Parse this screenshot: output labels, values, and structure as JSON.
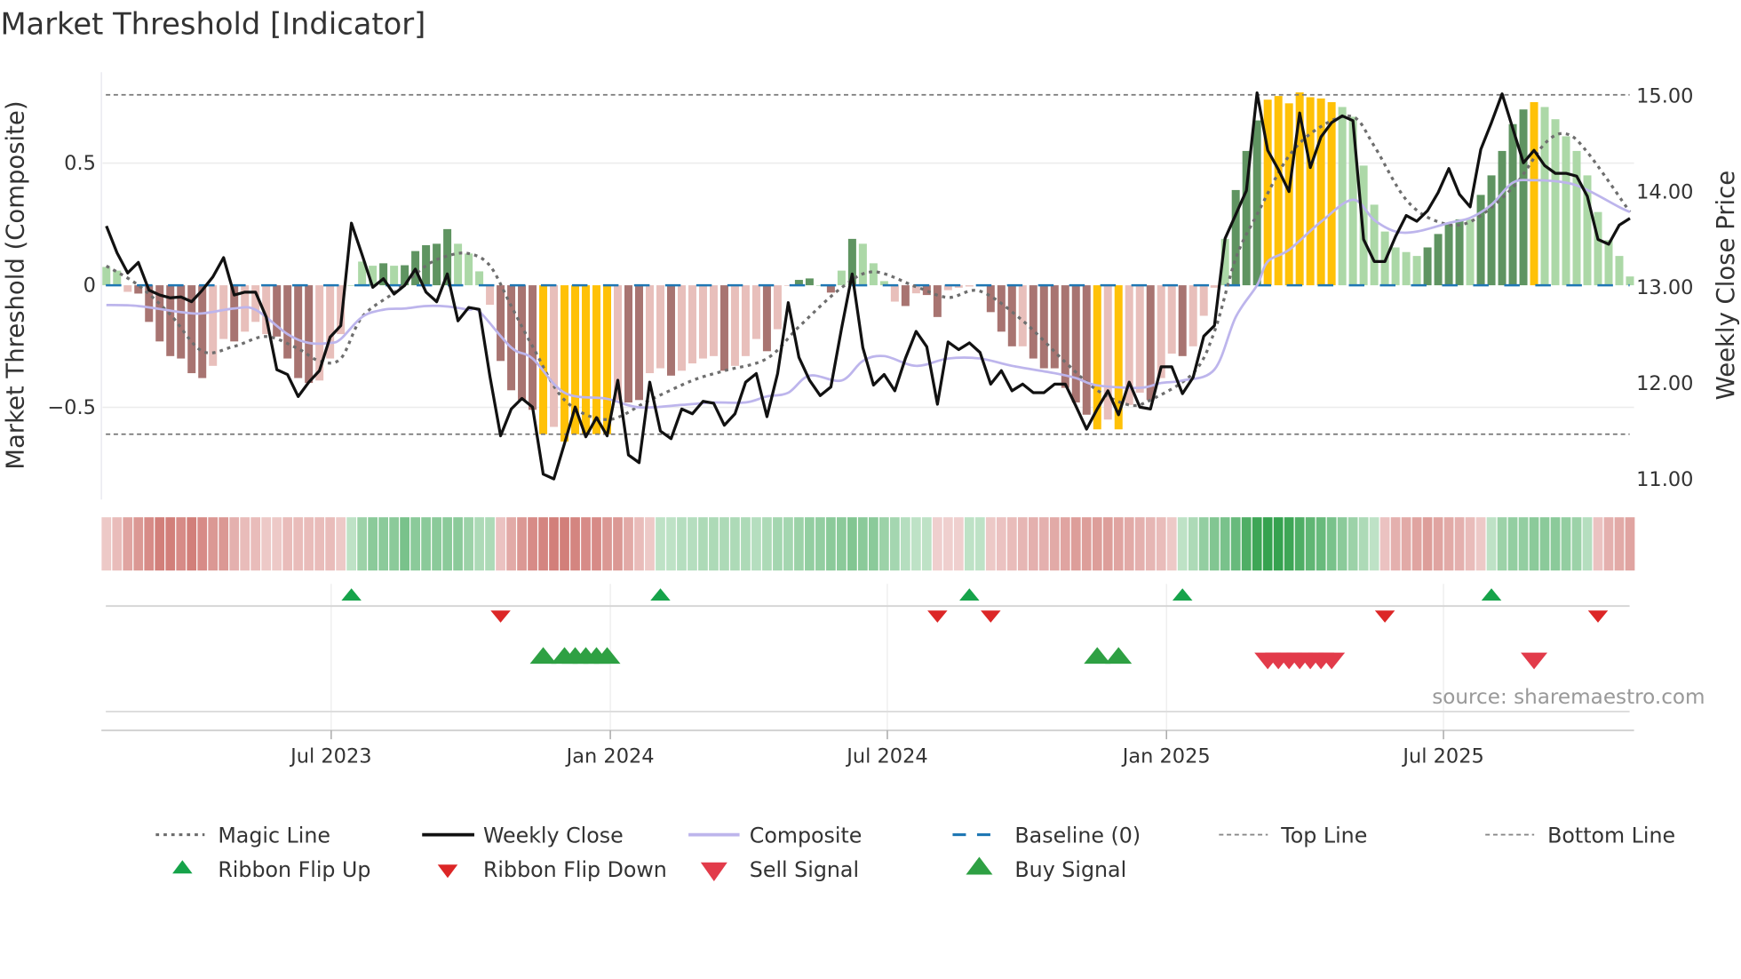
{
  "chart_data": {
    "type": "bar",
    "title": "Market Threshold [Indicator]",
    "ylabel_left": "Market Threshold (Composite)",
    "ylabel_right": "Weekly Close Price",
    "yticks_left": [
      {
        "v": 0.5,
        "label": "0.5"
      },
      {
        "v": 0,
        "label": "0"
      },
      {
        "v": -0.5,
        "label": "−0.5"
      }
    ],
    "yticks_right": [
      {
        "v": 15,
        "label": "15.00"
      },
      {
        "v": 14,
        "label": "14.00"
      },
      {
        "v": 13,
        "label": "13.00"
      },
      {
        "v": 12,
        "label": "12.00"
      },
      {
        "v": 11,
        "label": "11.00"
      }
    ],
    "xticks": [
      {
        "week": 21.1,
        "label": "Jul 2023"
      },
      {
        "week": 47.3,
        "label": "Jan 2024"
      },
      {
        "week": 73.3,
        "label": "Jul 2024"
      },
      {
        "week": 99.5,
        "label": "Jan 2025"
      },
      {
        "week": 125.5,
        "label": "Jul 2025"
      }
    ],
    "top_line": 0.78,
    "bottom_line": -0.61,
    "baseline": 0,
    "source": "source: sharemaestro.com",
    "colors": {
      "dg": "#5f9461",
      "lg": "#acd8a7",
      "dr": "#a87471",
      "lr": "#e8bfbb",
      "y": "#ffc107",
      "magic": "#6e6e6e",
      "close": "#111111",
      "composite": "#bdb5ec",
      "baseline": "#1f77b4",
      "flip_up": "#16a34a",
      "flip_down": "#dc2626",
      "buy": "#2ea043",
      "sell": "#e23b4a"
    },
    "composite_bars": [
      0.075,
      0.06,
      -0.027,
      -0.034,
      -0.15,
      -0.23,
      -0.29,
      -0.3,
      -0.36,
      -0.38,
      -0.33,
      -0.22,
      -0.23,
      -0.19,
      -0.15,
      -0.2,
      -0.21,
      -0.3,
      -0.38,
      -0.4,
      -0.39,
      -0.3,
      -0.2,
      0.0,
      0.097,
      0.08,
      0.09,
      0.08,
      0.082,
      0.14,
      0.164,
      0.17,
      0.23,
      0.17,
      0.13,
      0.057,
      -0.08,
      -0.31,
      -0.43,
      -0.47,
      -0.51,
      -0.61,
      -0.58,
      -0.64,
      -0.61,
      -0.61,
      -0.61,
      -0.61,
      -0.47,
      -0.48,
      -0.47,
      -0.36,
      -0.34,
      -0.37,
      -0.35,
      -0.32,
      -0.3,
      -0.29,
      -0.35,
      -0.33,
      -0.29,
      -0.22,
      -0.27,
      -0.18,
      0.0,
      0.022,
      0.028,
      0.0,
      -0.03,
      0.06,
      0.19,
      0.17,
      0.09,
      0.017,
      -0.067,
      -0.085,
      -0.033,
      -0.04,
      -0.13,
      -0.02,
      -0.01,
      -0.005,
      -0.005,
      -0.11,
      -0.19,
      -0.25,
      -0.25,
      -0.3,
      -0.34,
      -0.34,
      -0.42,
      -0.48,
      -0.53,
      -0.59,
      -0.55,
      -0.59,
      -0.49,
      -0.44,
      -0.47,
      -0.38,
      -0.28,
      -0.29,
      -0.25,
      -0.125,
      -0.01,
      0.19,
      0.39,
      0.55,
      0.675,
      0.76,
      0.775,
      0.745,
      0.79,
      0.77,
      0.765,
      0.75,
      0.73,
      0.69,
      0.49,
      0.33,
      0.22,
      0.155,
      0.136,
      0.12,
      0.155,
      0.21,
      0.25,
      0.27,
      0.27,
      0.37,
      0.45,
      0.55,
      0.66,
      0.72,
      0.75,
      0.73,
      0.68,
      0.61,
      0.55,
      0.45,
      0.3,
      0.185,
      0.12,
      0.036
    ],
    "bar_states": [
      "lg",
      "lg",
      "lr",
      "dr",
      "dr",
      "dr",
      "dr",
      "dr",
      "dr",
      "dr",
      "lr",
      "lr",
      "dr",
      "lr",
      "lr",
      "lr",
      "dr",
      "dr",
      "dr",
      "dr",
      "lr",
      "lr",
      "lr",
      "lg",
      "lg",
      "lg",
      "dg",
      "lg",
      "dg",
      "dg",
      "dg",
      "dg",
      "dg",
      "lg",
      "lg",
      "lg",
      "lr",
      "dr",
      "dr",
      "dr",
      "dr",
      "y",
      "lr",
      "y",
      "y",
      "y",
      "y",
      "y",
      "lr",
      "dr",
      "dr",
      "lr",
      "lr",
      "dr",
      "lr",
      "lr",
      "lr",
      "lr",
      "dr",
      "lr",
      "lr",
      "lr",
      "dr",
      "lr",
      "lr",
      "dg",
      "dg",
      "lg",
      "dr",
      "lg",
      "dg",
      "lg",
      "lg",
      "lg",
      "lr",
      "dr",
      "lr",
      "dr",
      "dr",
      "lr",
      "lr",
      "lr",
      "lr",
      "dr",
      "dr",
      "dr",
      "lr",
      "dr",
      "dr",
      "dr",
      "dr",
      "dr",
      "dr",
      "y",
      "lr",
      "y",
      "lr",
      "lr",
      "dr",
      "lr",
      "lr",
      "dr",
      "lr",
      "lr",
      "lr",
      "lg",
      "dg",
      "dg",
      "dg",
      "y",
      "y",
      "y",
      "y",
      "y",
      "y",
      "y",
      "lg",
      "lg",
      "lg",
      "lg",
      "lg",
      "lg",
      "lg",
      "lg",
      "dg",
      "dg",
      "dg",
      "dg",
      "lg",
      "dg",
      "dg",
      "dg",
      "dg",
      "dg",
      "y",
      "lg",
      "lg",
      "lg",
      "lg",
      "lg",
      "lg",
      "lg",
      "lg",
      "lg"
    ],
    "weekly_close": [
      13.63,
      13.35,
      13.14,
      13.25,
      12.96,
      12.91,
      12.88,
      12.89,
      12.84,
      12.96,
      13.1,
      13.3,
      12.91,
      12.94,
      12.94,
      12.68,
      12.13,
      12.08,
      11.85,
      12.0,
      12.12,
      12.47,
      12.59,
      13.66,
      13.33,
      12.99,
      13.08,
      12.92,
      13.01,
      13.18,
      12.94,
      12.84,
      13.13,
      12.64,
      12.78,
      12.76,
      12.06,
      11.44,
      11.72,
      11.83,
      11.74,
      11.04,
      10.99,
      11.36,
      11.74,
      11.43,
      11.63,
      11.44,
      12.02,
      11.24,
      11.16,
      12.0,
      11.49,
      11.41,
      11.72,
      11.67,
      11.8,
      11.78,
      11.55,
      11.67,
      12.0,
      12.09,
      11.64,
      12.09,
      12.83,
      12.26,
      12.02,
      11.86,
      11.95,
      12.56,
      13.13,
      12.36,
      11.97,
      12.08,
      11.91,
      12.25,
      12.53,
      12.37,
      11.77,
      12.42,
      12.34,
      12.41,
      12.31,
      11.98,
      12.12,
      11.91,
      11.98,
      11.89,
      11.89,
      11.98,
      11.98,
      11.75,
      11.51,
      11.72,
      11.91,
      11.66,
      12.0,
      11.74,
      11.72,
      12.16,
      12.16,
      11.88,
      12.05,
      12.48,
      12.59,
      13.5,
      13.75,
      14.0,
      15.02,
      14.42,
      14.22,
      13.99,
      14.81,
      14.24,
      14.56,
      14.71,
      14.78,
      14.73,
      13.49,
      13.26,
      13.26,
      13.52,
      13.74,
      13.68,
      13.79,
      13.98,
      14.23,
      13.96,
      13.83,
      14.43,
      14.71,
      15.01,
      14.65,
      14.29,
      14.42,
      14.26,
      14.18,
      14.18,
      14.15,
      13.94,
      13.49,
      13.44,
      13.64,
      13.71
    ],
    "magic_line": [
      [
        0,
        0.079
      ],
      [
        3,
        0
      ],
      [
        6,
        -0.12
      ],
      [
        9,
        -0.27
      ],
      [
        12,
        -0.25
      ],
      [
        15,
        -0.21
      ],
      [
        18,
        -0.26
      ],
      [
        20,
        -0.31
      ],
      [
        22,
        -0.3
      ],
      [
        24,
        -0.13
      ],
      [
        27,
        -0.03
      ],
      [
        30,
        0.08
      ],
      [
        32,
        0.12
      ],
      [
        34,
        0.13
      ],
      [
        36,
        0.08
      ],
      [
        38,
        -0.085
      ],
      [
        40,
        -0.25
      ],
      [
        43,
        -0.47
      ],
      [
        47,
        -0.55
      ],
      [
        51,
        -0.47
      ],
      [
        55,
        -0.39
      ],
      [
        58,
        -0.35
      ],
      [
        62,
        -0.3
      ],
      [
        65,
        -0.17
      ],
      [
        69,
        -0.01
      ],
      [
        72,
        0.055
      ],
      [
        76,
        -0.006
      ],
      [
        79,
        -0.05
      ],
      [
        82,
        -0.024
      ],
      [
        86,
        -0.145
      ],
      [
        90,
        -0.315
      ],
      [
        93,
        -0.43
      ],
      [
        96,
        -0.49
      ],
      [
        98,
        -0.47
      ],
      [
        102,
        -0.36
      ],
      [
        104,
        -0.19
      ],
      [
        106,
        0.11
      ],
      [
        108,
        0.29
      ],
      [
        111,
        0.53
      ],
      [
        114,
        0.65
      ],
      [
        117,
        0.69
      ],
      [
        119,
        0.57
      ],
      [
        122,
        0.35
      ],
      [
        125,
        0.26
      ],
      [
        128,
        0.26
      ],
      [
        132,
        0.4
      ],
      [
        135,
        0.58
      ],
      [
        137,
        0.62
      ],
      [
        139,
        0.545
      ],
      [
        143,
        0.3
      ]
    ],
    "composite_line": [
      [
        0,
        -0.081
      ],
      [
        3,
        -0.085
      ],
      [
        7,
        -0.11
      ],
      [
        9,
        -0.115
      ],
      [
        12,
        -0.095
      ],
      [
        14,
        -0.1
      ],
      [
        17,
        -0.2
      ],
      [
        19,
        -0.236
      ],
      [
        21,
        -0.236
      ],
      [
        22,
        -0.22
      ],
      [
        24,
        -0.13
      ],
      [
        26,
        -0.1
      ],
      [
        28,
        -0.095
      ],
      [
        30,
        -0.085
      ],
      [
        32,
        -0.087
      ],
      [
        34,
        -0.1
      ],
      [
        35,
        -0.107
      ],
      [
        38,
        -0.255
      ],
      [
        40,
        -0.3
      ],
      [
        43,
        -0.44
      ],
      [
        47,
        -0.465
      ],
      [
        50,
        -0.5
      ],
      [
        54,
        -0.49
      ],
      [
        57,
        -0.48
      ],
      [
        60,
        -0.48
      ],
      [
        62,
        -0.455
      ],
      [
        64,
        -0.44
      ],
      [
        66,
        -0.37
      ],
      [
        69,
        -0.39
      ],
      [
        71,
        -0.31
      ],
      [
        73,
        -0.29
      ],
      [
        76,
        -0.33
      ],
      [
        79,
        -0.3
      ],
      [
        82,
        -0.3
      ],
      [
        85,
        -0.33
      ],
      [
        89,
        -0.36
      ],
      [
        91,
        -0.38
      ],
      [
        93,
        -0.41
      ],
      [
        97,
        -0.42
      ],
      [
        99,
        -0.4
      ],
      [
        101,
        -0.39
      ],
      [
        104,
        -0.345
      ],
      [
        106,
        -0.13
      ],
      [
        108,
        0
      ],
      [
        109,
        0.097
      ],
      [
        111,
        0.145
      ],
      [
        114,
        0.26
      ],
      [
        117,
        0.35
      ],
      [
        119,
        0.267
      ],
      [
        121,
        0.22
      ],
      [
        123,
        0.22
      ],
      [
        126,
        0.255
      ],
      [
        128,
        0.276
      ],
      [
        130,
        0.33
      ],
      [
        132,
        0.42
      ],
      [
        134,
        0.43
      ],
      [
        137,
        0.42
      ],
      [
        139,
        0.39
      ],
      [
        142,
        0.32
      ],
      [
        143,
        0.3
      ]
    ],
    "ribbon": [
      -0.2,
      -0.3,
      -0.5,
      -0.6,
      -0.7,
      -0.8,
      -0.8,
      -0.7,
      -0.8,
      -0.7,
      -0.6,
      -0.6,
      -0.4,
      -0.3,
      -0.3,
      -0.2,
      -0.2,
      -0.3,
      -0.3,
      -0.3,
      -0.3,
      -0.3,
      -0.2,
      0.2,
      0.4,
      0.5,
      0.5,
      0.5,
      0.6,
      0.5,
      0.5,
      0.5,
      0.5,
      0.5,
      0.4,
      0.3,
      0.3,
      -0.25,
      -0.45,
      -0.6,
      -0.7,
      -0.75,
      -0.8,
      -0.8,
      -0.75,
      -0.7,
      -0.7,
      -0.6,
      -0.6,
      -0.45,
      -0.3,
      -0.2,
      0.2,
      0.2,
      0.25,
      0.25,
      0.3,
      0.3,
      0.3,
      0.3,
      0.3,
      0.25,
      0.3,
      0.35,
      0.35,
      0.4,
      0.45,
      0.45,
      0.5,
      0.5,
      0.55,
      0.5,
      0.5,
      0.4,
      0.35,
      0.25,
      0.2,
      0.2,
      -0.15,
      -0.15,
      -0.15,
      0.2,
      0.2,
      -0.2,
      -0.25,
      -0.3,
      -0.35,
      -0.4,
      -0.4,
      -0.45,
      -0.5,
      -0.55,
      -0.55,
      -0.55,
      -0.55,
      -0.5,
      -0.45,
      -0.4,
      -0.35,
      -0.3,
      -0.2,
      0.2,
      0.3,
      0.45,
      0.55,
      0.6,
      0.7,
      0.85,
      0.95,
      1.0,
      1.0,
      0.95,
      0.85,
      0.75,
      0.7,
      0.6,
      0.5,
      0.4,
      0.3,
      0.2,
      -0.25,
      -0.4,
      -0.45,
      -0.5,
      -0.55,
      -0.5,
      -0.45,
      -0.4,
      -0.3,
      -0.2,
      0.2,
      0.4,
      0.45,
      0.45,
      0.5,
      0.5,
      0.5,
      0.45,
      0.4,
      0.25,
      -0.25,
      -0.4,
      -0.45,
      -0.5
    ],
    "ribbon_flip_up": [
      23,
      52,
      81,
      101,
      130
    ],
    "ribbon_flip_down": [
      37,
      78,
      83,
      120,
      140
    ],
    "buy_signal": [
      41,
      43,
      44,
      45,
      46,
      47,
      93,
      95
    ],
    "sell_signal": [
      109,
      110,
      111,
      112,
      113,
      114,
      115,
      134
    ],
    "legend": {
      "magic": "Magic Line",
      "close": "Weekly Close",
      "composite": "Composite",
      "baseline": "Baseline (0)",
      "top": "Top Line",
      "bottom": "Bottom Line",
      "flip_up": "Ribbon Flip Up",
      "flip_down": "Ribbon Flip Down",
      "sell": "Sell Signal",
      "buy": "Buy Signal"
    }
  }
}
